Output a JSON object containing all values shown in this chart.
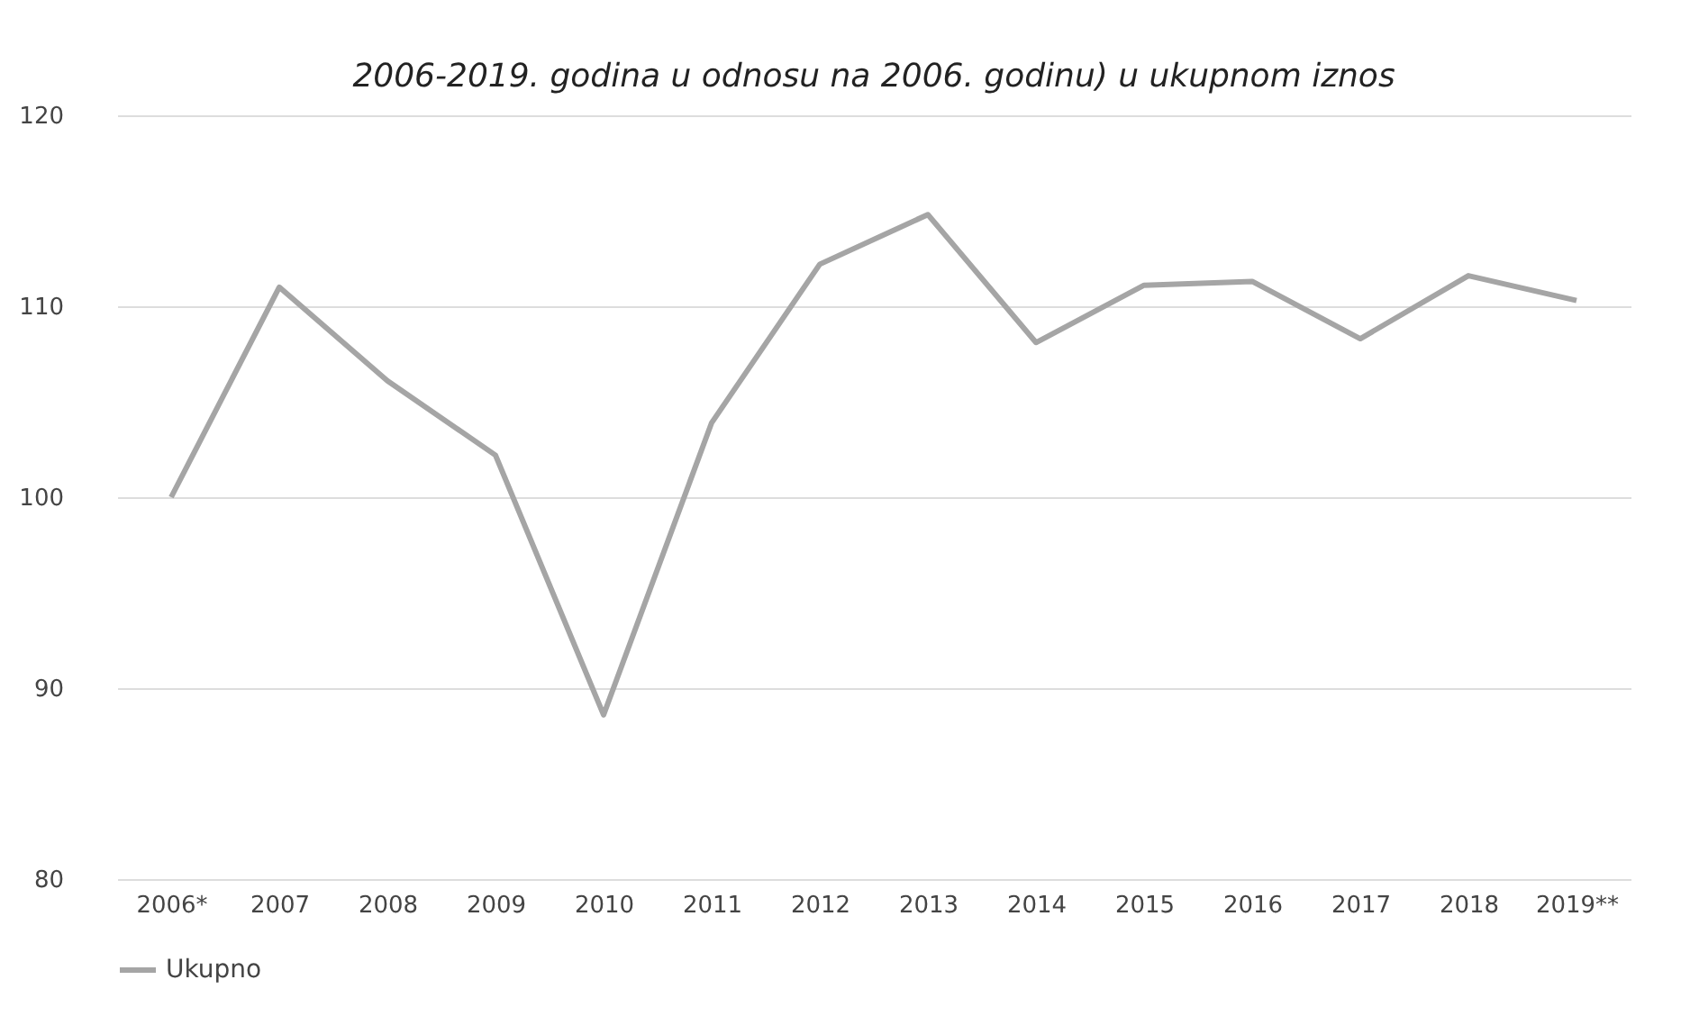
{
  "chart_data": {
    "type": "line",
    "title": "2006-2019. godina u odnosu na 2006. godinu) u ukupnom iznos",
    "categories": [
      "2006*",
      "2007",
      "2008",
      "2009",
      "2010",
      "2011",
      "2012",
      "2013",
      "2014",
      "2015",
      "2016",
      "2017",
      "2018",
      "2019**"
    ],
    "series": [
      {
        "name": "Ukupno",
        "color": "#a5a5a5",
        "values": [
          100,
          111.0,
          106.1,
          102.2,
          88.6,
          103.9,
          112.2,
          114.8,
          108.1,
          111.1,
          111.3,
          108.3,
          111.6,
          110.3
        ]
      }
    ],
    "ylim": [
      80,
      120
    ],
    "yticks": [
      80,
      90,
      100,
      110,
      120
    ],
    "grid": "y",
    "legend": "bottom",
    "marker": "none",
    "line_style": "solid"
  }
}
